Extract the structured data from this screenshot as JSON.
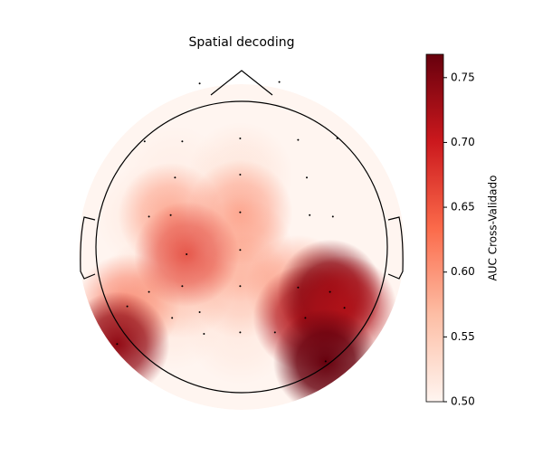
{
  "chart_data": {
    "type": "topomap",
    "title": "Spatial decoding",
    "colorbar_label": "AUC Cross-Validado",
    "colormap": [
      "#fff5f0",
      "#fdbea5",
      "#fb6a4a",
      "#cb181d",
      "#67000d"
    ],
    "clim": [
      0.5,
      0.768
    ],
    "cticks": [
      {
        "value": 0.5,
        "label": "0.50"
      },
      0.55,
      {
        "value": 0.6,
        "label": "0.60"
      },
      0.65,
      {
        "value": 0.7,
        "label": "0.70"
      },
      0.75
    ],
    "sensors": {
      "x": [
        -0.29,
        0.26,
        -0.67,
        -0.41,
        -0.01,
        0.39,
        0.66,
        -0.46,
        -0.01,
        0.45,
        -0.64,
        -0.49,
        -0.01,
        0.47,
        0.63,
        -0.01,
        -0.41,
        -0.01,
        0.39,
        -0.64,
        -0.79,
        -0.48,
        -0.29,
        -0.01,
        0.23,
        0.44,
        0.61,
        0.71,
        -0.26,
        -0.86,
        0.58,
        -0.38
      ],
      "y": [
        1.13,
        1.14,
        0.73,
        0.73,
        0.75,
        0.74,
        0.75,
        0.48,
        0.5,
        0.48,
        0.21,
        0.22,
        0.24,
        0.22,
        0.21,
        -0.02,
        -0.27,
        -0.27,
        -0.28,
        -0.31,
        -0.41,
        -0.49,
        -0.45,
        -0.59,
        -0.59,
        -0.49,
        -0.31,
        -0.42,
        -0.6,
        -0.67,
        -0.79,
        -0.05
      ],
      "values": [
        0.5,
        0.5,
        0.5,
        0.5,
        0.5,
        0.5,
        0.5,
        0.54,
        0.56,
        0.5,
        0.55,
        0.62,
        0.62,
        0.5,
        0.5,
        0.6,
        0.6,
        0.6,
        0.62,
        0.57,
        0.64,
        0.55,
        0.52,
        0.55,
        0.5,
        0.72,
        0.75,
        0.72,
        0.5,
        0.74,
        0.77,
        0.67
      ]
    }
  }
}
